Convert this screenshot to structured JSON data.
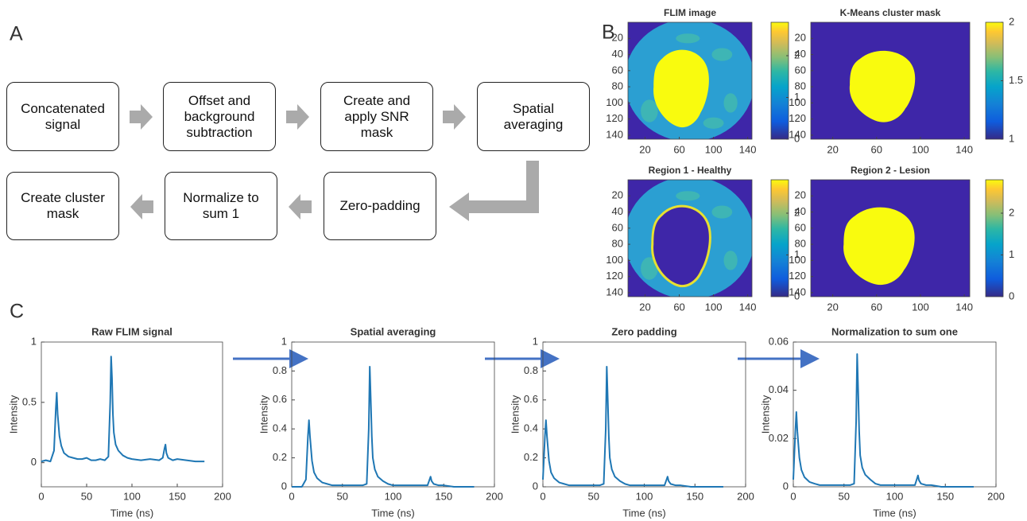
{
  "panel_labels": [
    "A",
    "B",
    "C"
  ],
  "flowchart": {
    "steps": [
      "Concatenated signal",
      "Offset and background subtraction",
      "Create and apply SNR mask",
      "Spatial averaging",
      "Zero-padding",
      "Normalize to sum 1",
      "Create cluster mask"
    ]
  },
  "chart_data": [
    {
      "type": "heatmap",
      "title": "FLIM image",
      "xlim": [
        0,
        145
      ],
      "ylim": [
        0,
        145
      ],
      "yreverse": true,
      "xticks": [
        20,
        60,
        100,
        140
      ],
      "yticks": [
        20,
        40,
        60,
        80,
        100,
        120,
        140
      ],
      "clim": [
        0,
        2.8
      ],
      "cticks": [
        0,
        1,
        2
      ]
    },
    {
      "type": "heatmap",
      "title": "K-Means cluster mask",
      "xlim": [
        0,
        145
      ],
      "ylim": [
        0,
        145
      ],
      "yreverse": true,
      "xticks": [
        20,
        60,
        100,
        140
      ],
      "yticks": [
        20,
        40,
        60,
        80,
        100,
        120,
        140
      ],
      "clim": [
        1,
        2
      ],
      "cticks": [
        1,
        1.5,
        2
      ]
    },
    {
      "type": "heatmap",
      "title": "Region 1 - Healthy",
      "xlim": [
        0,
        145
      ],
      "ylim": [
        0,
        145
      ],
      "yreverse": true,
      "xticks": [
        20,
        60,
        100,
        140
      ],
      "yticks": [
        20,
        40,
        60,
        80,
        100,
        120,
        140
      ],
      "clim": [
        0,
        2.8
      ],
      "cticks": [
        0,
        1,
        2
      ]
    },
    {
      "type": "heatmap",
      "title": "Region 2 - Lesion",
      "xlim": [
        0,
        145
      ],
      "ylim": [
        0,
        145
      ],
      "yreverse": true,
      "xticks": [
        20,
        60,
        100,
        140
      ],
      "yticks": [
        20,
        40,
        60,
        80,
        100,
        120,
        140
      ],
      "clim": [
        0,
        2.8
      ],
      "cticks": [
        0,
        1,
        2
      ]
    },
    {
      "type": "line",
      "title": "Raw FLIM signal",
      "xlabel": "Time (ns)",
      "ylabel": "Intensity",
      "color": "#1f77b4",
      "xlim": [
        0,
        200
      ],
      "xticks": [
        0,
        50,
        100,
        150,
        200
      ],
      "ylim": [
        -0.2,
        1
      ],
      "yticks": [
        0,
        0.5,
        1
      ],
      "x": [
        0,
        5,
        10,
        14,
        16,
        17,
        18,
        20,
        22,
        25,
        30,
        35,
        40,
        45,
        50,
        55,
        60,
        65,
        70,
        74,
        76,
        77,
        78,
        79,
        80,
        82,
        85,
        90,
        95,
        100,
        110,
        120,
        130,
        134,
        136,
        137,
        138,
        140,
        145,
        150,
        160,
        170,
        180
      ],
      "values": [
        0.01,
        0.02,
        0.01,
        0.1,
        0.45,
        0.58,
        0.4,
        0.22,
        0.14,
        0.08,
        0.05,
        0.04,
        0.03,
        0.03,
        0.04,
        0.02,
        0.02,
        0.03,
        0.02,
        0.05,
        0.5,
        0.88,
        0.7,
        0.4,
        0.25,
        0.15,
        0.1,
        0.06,
        0.04,
        0.03,
        0.02,
        0.03,
        0.02,
        0.04,
        0.12,
        0.15,
        0.08,
        0.04,
        0.02,
        0.03,
        0.02,
        0.01,
        0.01
      ]
    },
    {
      "type": "line",
      "title": "Spatial averaging",
      "xlabel": "Time (ns)",
      "ylabel": "Intensity",
      "color": "#1f77b4",
      "xlim": [
        0,
        200
      ],
      "xticks": [
        0,
        50,
        100,
        150,
        200
      ],
      "ylim": [
        0,
        1
      ],
      "yticks": [
        0,
        0.2,
        0.4,
        0.6,
        0.8,
        1
      ],
      "x": [
        0,
        5,
        10,
        14,
        16,
        17,
        18,
        20,
        22,
        25,
        30,
        35,
        40,
        45,
        50,
        55,
        60,
        65,
        70,
        74,
        76,
        77,
        78,
        79,
        80,
        82,
        85,
        90,
        95,
        100,
        110,
        120,
        130,
        134,
        136,
        137,
        138,
        140,
        145,
        150,
        160,
        170,
        180
      ],
      "values": [
        0,
        0,
        0,
        0.05,
        0.35,
        0.46,
        0.35,
        0.18,
        0.1,
        0.06,
        0.03,
        0.02,
        0.01,
        0.01,
        0.01,
        0.01,
        0.01,
        0.01,
        0.01,
        0.02,
        0.4,
        0.83,
        0.6,
        0.35,
        0.2,
        0.12,
        0.07,
        0.04,
        0.02,
        0.01,
        0.01,
        0.01,
        0.01,
        0.01,
        0.05,
        0.07,
        0.04,
        0.02,
        0.01,
        0.01,
        0,
        0,
        0
      ]
    },
    {
      "type": "line",
      "title": "Zero padding",
      "xlabel": "Time (ns)",
      "ylabel": "Intensity",
      "color": "#1f77b4",
      "xlim": [
        0,
        200
      ],
      "xticks": [
        0,
        50,
        100,
        150,
        200
      ],
      "ylim": [
        0,
        1
      ],
      "yticks": [
        0,
        0.2,
        0.4,
        0.6,
        0.8,
        1
      ],
      "x": [
        0,
        2,
        3,
        4,
        6,
        8,
        11,
        16,
        21,
        26,
        31,
        36,
        41,
        46,
        51,
        56,
        60,
        62,
        63,
        64,
        65,
        66,
        68,
        71,
        76,
        81,
        86,
        96,
        106,
        116,
        120,
        122,
        123,
        124,
        126,
        131,
        136,
        146,
        156,
        166,
        178
      ],
      "values": [
        0.05,
        0.35,
        0.46,
        0.35,
        0.18,
        0.1,
        0.06,
        0.03,
        0.02,
        0.01,
        0.01,
        0.01,
        0.01,
        0.01,
        0.01,
        0.01,
        0.02,
        0.4,
        0.83,
        0.6,
        0.35,
        0.2,
        0.12,
        0.07,
        0.04,
        0.02,
        0.01,
        0.01,
        0.01,
        0.01,
        0.01,
        0.05,
        0.07,
        0.04,
        0.02,
        0.01,
        0.01,
        0,
        0,
        0,
        0
      ]
    },
    {
      "type": "line",
      "title": "Normalization to sum one",
      "xlabel": "Time (ns)",
      "ylabel": "Intensity",
      "color": "#1f77b4",
      "xlim": [
        0,
        200
      ],
      "xticks": [
        0,
        50,
        100,
        150,
        200
      ],
      "ylim": [
        0,
        0.06
      ],
      "yticks": [
        0,
        0.02,
        0.04,
        0.06
      ],
      "x": [
        0,
        2,
        3,
        4,
        6,
        8,
        11,
        16,
        21,
        26,
        31,
        36,
        41,
        46,
        51,
        56,
        60,
        62,
        63,
        64,
        65,
        66,
        68,
        71,
        76,
        81,
        86,
        96,
        106,
        116,
        120,
        122,
        123,
        124,
        126,
        131,
        136,
        146,
        156,
        166,
        178
      ],
      "values": [
        0.003,
        0.023,
        0.031,
        0.023,
        0.012,
        0.007,
        0.004,
        0.002,
        0.0013,
        0.0007,
        0.0007,
        0.0007,
        0.0007,
        0.0007,
        0.0007,
        0.0007,
        0.0013,
        0.027,
        0.055,
        0.04,
        0.023,
        0.013,
        0.008,
        0.005,
        0.003,
        0.0013,
        0.0007,
        0.0007,
        0.0007,
        0.0007,
        0.0007,
        0.0033,
        0.0047,
        0.0027,
        0.0013,
        0.0007,
        0.0007,
        0,
        0,
        0,
        0
      ]
    }
  ]
}
